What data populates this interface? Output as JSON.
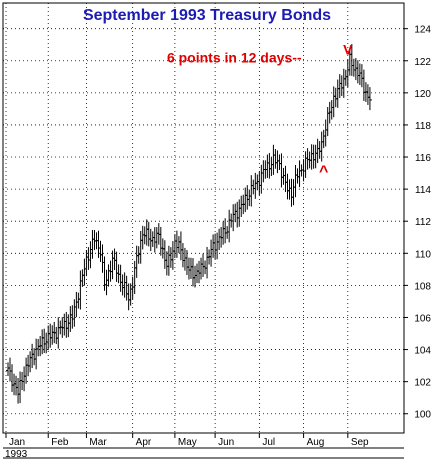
{
  "colors": {
    "title": "#1c1cb4",
    "annotation": "#e00000",
    "bars": "#000000",
    "grid": "#000000",
    "background": "#ffffff"
  },
  "chart_data": {
    "type": "ohlc",
    "title": "September 1993 Treasury Bonds",
    "xlabel": "",
    "ylabel": "",
    "ylim": [
      98.8,
      125.6
    ],
    "grid": true,
    "y_ticks": [
      "100",
      "102",
      "104",
      "106",
      "108",
      "110",
      "112",
      "114",
      "116",
      "118",
      "120",
      "122",
      "124"
    ],
    "x_ticks": [
      "Jan",
      "Feb",
      "Mar",
      "Apr",
      "May",
      "Jun",
      "Jul",
      "Aug",
      "Sep"
    ],
    "year_label": "1993",
    "month_day_start": [
      0,
      21,
      40,
      63,
      84,
      104,
      126,
      148,
      170
    ],
    "total_days": 188,
    "close_anchors": [
      [
        0,
        102.7
      ],
      [
        5,
        101.3
      ],
      [
        8,
        102.6
      ],
      [
        13,
        103.8
      ],
      [
        18,
        104.6
      ],
      [
        22,
        104.9
      ],
      [
        27,
        105.4
      ],
      [
        32,
        106.0
      ],
      [
        35,
        107.5
      ],
      [
        39,
        109.6
      ],
      [
        43,
        110.9
      ],
      [
        46,
        110.2
      ],
      [
        48,
        108.0
      ],
      [
        52,
        109.6
      ],
      [
        55,
        108.6
      ],
      [
        58,
        107.8
      ],
      [
        60,
        107.2
      ],
      [
        62,
        108.2
      ],
      [
        64,
        109.6
      ],
      [
        67,
        111.3
      ],
      [
        71,
        110.9
      ],
      [
        75,
        111.0
      ],
      [
        77,
        110.2
      ],
      [
        79,
        109.2
      ],
      [
        81,
        109.8
      ],
      [
        83,
        110.7
      ],
      [
        85,
        110.4
      ],
      [
        88,
        109.6
      ],
      [
        90,
        108.9
      ],
      [
        93,
        108.7
      ],
      [
        96,
        109.0
      ],
      [
        99,
        109.6
      ],
      [
        102,
        110.4
      ],
      [
        105,
        110.9
      ],
      [
        108,
        111.4
      ],
      [
        112,
        112.3
      ],
      [
        116,
        112.9
      ],
      [
        120,
        113.8
      ],
      [
        124,
        114.4
      ],
      [
        128,
        115.3
      ],
      [
        132,
        115.8
      ],
      [
        135,
        115.6
      ],
      [
        137,
        114.6
      ],
      [
        139,
        114.0
      ],
      [
        141,
        113.8
      ],
      [
        144,
        114.9
      ],
      [
        148,
        115.6
      ],
      [
        151,
        116.1
      ],
      [
        154,
        116.2
      ],
      [
        156,
        116.9
      ],
      [
        158,
        117.9
      ],
      [
        160,
        118.8
      ],
      [
        162,
        119.7
      ],
      [
        165,
        120.3
      ],
      [
        168,
        121.1
      ],
      [
        170,
        122.0
      ],
      [
        172,
        121.6
      ],
      [
        174,
        121.3
      ],
      [
        176,
        120.7
      ],
      [
        178,
        120.0
      ],
      [
        180,
        119.6
      ]
    ],
    "annotations": [
      {
        "text": "6 points in 12 days--",
        "day": 146,
        "price": 122.2
      },
      {
        "text": "V",
        "day": 169,
        "price": 122.4
      },
      {
        "text": "^",
        "day": 157,
        "price": 115.3
      }
    ]
  }
}
